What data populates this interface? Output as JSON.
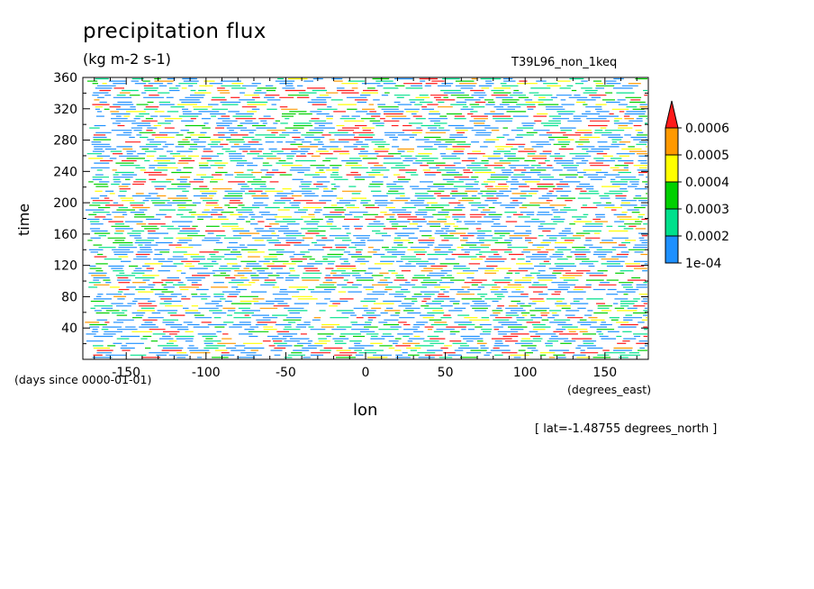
{
  "chart_data": {
    "type": "heatmap",
    "title": "precipitation flux",
    "units": "(kg m-2 s-1)",
    "run_label": "T39L96_non_1keq",
    "xlabel": "lon",
    "x_units": "(degrees_east)",
    "ylabel": "time",
    "y_units": "(days since 0000-01-01)",
    "subset_note": "[ lat=-1.48755 degrees_north ]",
    "xlim": [
      -177.2,
      177.2
    ],
    "ylim": [
      0,
      360
    ],
    "x_ticks": [
      -150,
      -100,
      -50,
      0,
      50,
      100,
      150
    ],
    "x_tick_labels": [
      "-150",
      "-100",
      "-50",
      "0",
      "50",
      "100",
      "150"
    ],
    "y_ticks": [
      40,
      80,
      120,
      160,
      200,
      240,
      280,
      320,
      360
    ],
    "y_tick_labels": [
      "40",
      "80",
      "120",
      "160",
      "200",
      "240",
      "280",
      "320",
      "360"
    ],
    "colorbar": {
      "levels": [
        0.0001,
        0.0002,
        0.0003,
        0.0004,
        0.0005,
        0.0006
      ],
      "labels": [
        "1e-04",
        "0.0002",
        "0.0003",
        "0.0004",
        "0.0005",
        "0.0006"
      ],
      "colors": [
        "#1e90ff",
        "#00e08c",
        "#00d000",
        "#ffff00",
        "#ff9900",
        "#ff1a1a"
      ],
      "extend": "max"
    },
    "grid": false
  }
}
